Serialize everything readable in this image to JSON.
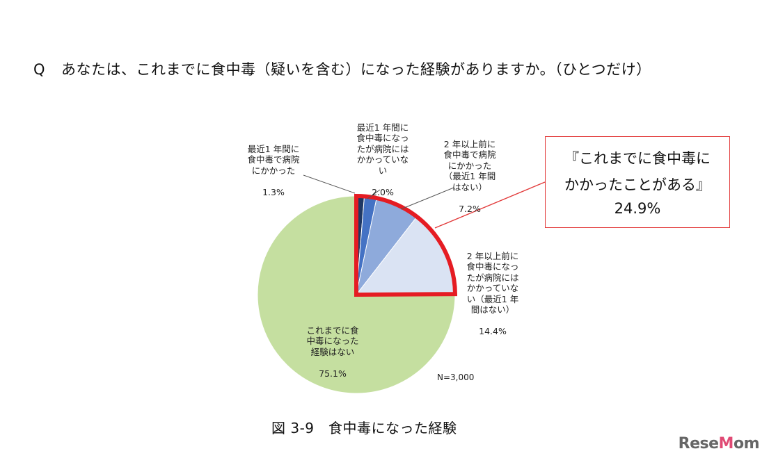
{
  "question": {
    "mark": "Q",
    "text": "あなたは、これまでに食中毒（疑いを含む）になった経験がありますか。（ひとつだけ）"
  },
  "chart_data": {
    "type": "pie",
    "total_label": "N=3,000",
    "start": "12 o'clock, clockwise",
    "slices": [
      {
        "label": "最近1 年間に\n食中毒で病院\nにかかった",
        "value": 1.3,
        "value_label": "1.3%",
        "color": "#1f3864"
      },
      {
        "label": "最近1 年間に\n食中毒になっ\nたが病院には\nかかっていな\nい",
        "value": 2.0,
        "value_label": "2.0%",
        "color": "#4472c4"
      },
      {
        "label": "2 年以上前に\n食中毒で病院\nにかかった\n（最近1 年間\nはない）",
        "value": 7.2,
        "value_label": "7.2%",
        "color": "#8eaadb"
      },
      {
        "label": "2 年以上前に\n食中毒になっ\nたが病院には\nかかっていな\nい（最近1 年\n間はない）",
        "value": 14.4,
        "value_label": "14.4%",
        "color": "#dae3f3"
      },
      {
        "label": "これまでに食\n中毒になった\n経験はない",
        "value": 75.1,
        "value_label": "75.1%",
        "color": "#c5dfa0"
      }
    ],
    "highlight": {
      "label": "『これまでに食中毒に\nかかったことがある』",
      "value": 24.9,
      "value_label": "24.9%",
      "border_color": "#e51c23"
    }
  },
  "caption": "図 3-9　食中毒になった経験",
  "logo": {
    "main": "ReseMom"
  }
}
